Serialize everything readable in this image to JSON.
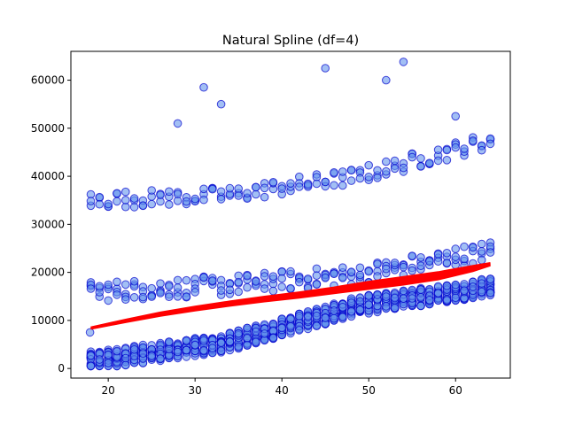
{
  "chart_data": {
    "type": "scatter",
    "title": "Natural Spline (df=4)",
    "xlabel": "",
    "ylabel": "",
    "xlim": [
      15.7,
      66.3
    ],
    "ylim": [
      -2000,
      66000
    ],
    "x_ticks": [
      20,
      30,
      40,
      50,
      60
    ],
    "y_ticks": [
      0,
      10000,
      20000,
      30000,
      40000,
      50000,
      60000
    ],
    "grid": false,
    "legend": "none",
    "colors": {
      "points_fill": "#6495ED",
      "points_edge": "#0000CD",
      "fit_line": "#FF0000"
    },
    "series": [
      {
        "kind": "scatter",
        "bands": [
          {
            "base": [
              1600,
              5200,
              13000,
              17000
            ],
            "jitter": 3800,
            "density": 18
          },
          {
            "base": [
              16000,
              17200,
              19500,
              24500
            ],
            "jitter": 4200,
            "density": 4
          },
          {
            "base": [
              35000,
              36000,
              40000,
              47500
            ],
            "jitter": 3500,
            "density": 3
          }
        ],
        "outliers": [
          [
            28,
            51000
          ],
          [
            31,
            58500
          ],
          [
            33,
            55000
          ],
          [
            45,
            62500
          ],
          [
            52,
            60000
          ],
          [
            54,
            63800
          ],
          [
            60,
            52500
          ],
          [
            17.9,
            7500
          ]
        ]
      },
      {
        "kind": "line",
        "x": [
          18,
          22,
          26,
          30,
          34,
          38,
          42,
          46,
          50,
          54,
          58,
          62,
          64
        ],
        "y_low": [
          8200,
          9600,
          10900,
          12000,
          13000,
          13900,
          14700,
          15600,
          16500,
          17400,
          18500,
          20200,
          21400
        ],
        "y_high": [
          8600,
          10200,
          11700,
          12900,
          14000,
          15000,
          15900,
          16900,
          18100,
          19100,
          20100,
          21400,
          22000
        ]
      }
    ]
  }
}
